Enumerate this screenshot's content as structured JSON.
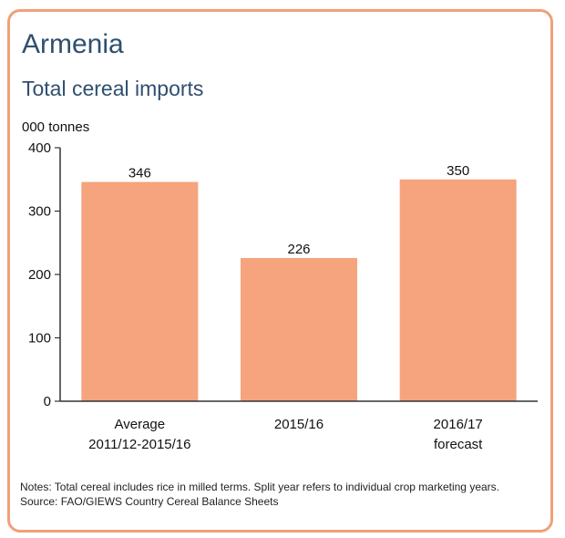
{
  "header": {
    "title": "Armenia",
    "subtitle": "Total cereal imports"
  },
  "chart_data": {
    "type": "bar",
    "ylabel": "000 tonnes",
    "ylim": [
      0,
      400
    ],
    "yticks": [
      0,
      100,
      200,
      300,
      400
    ],
    "categories": [
      [
        "Average",
        "2011/12-2015/16"
      ],
      [
        "2015/16"
      ],
      [
        "2016/17",
        "forecast"
      ]
    ],
    "values": [
      346,
      226,
      350
    ],
    "bar_color": "#f5a47e",
    "grid": false
  },
  "footer": {
    "notes": "Notes: Total cereal includes rice in milled terms. Split year refers to individual crop marketing years.",
    "source": "Source: FAO/GIEWS Country Cereal Balance Sheets"
  },
  "colors": {
    "border": "#f0a07a",
    "title": "#2f4f6f"
  }
}
